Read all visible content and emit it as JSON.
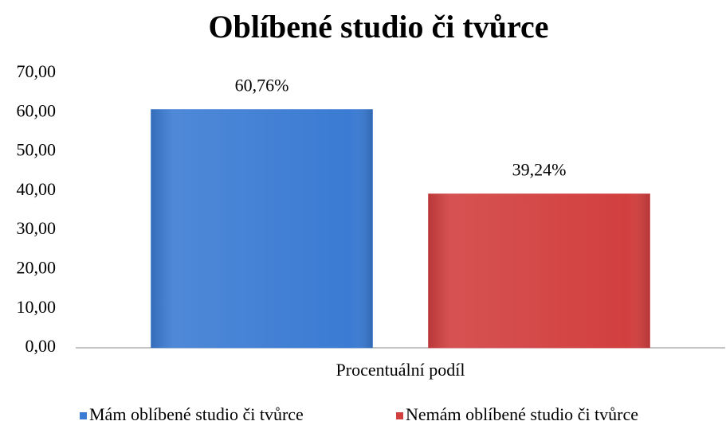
{
  "chart_data": {
    "type": "bar",
    "title": "Oblíbené studio či tvůrce",
    "categories": [
      "Procentuální podíl"
    ],
    "series": [
      {
        "name": "Mám oblíbené studio či tvůrce",
        "color": "#3b7bd3",
        "values": [
          60.76
        ],
        "value_labels": [
          "60,76%"
        ]
      },
      {
        "name": "Nemám oblíbené studio či tvůrce",
        "color": "#d23f3f",
        "values": [
          39.24
        ],
        "value_labels": [
          "39,24%"
        ]
      }
    ],
    "ylim": [
      0,
      70
    ],
    "yticks": [
      {
        "value": 0,
        "label": "0,00"
      },
      {
        "value": 10,
        "label": "10,00"
      },
      {
        "value": 20,
        "label": "20,00"
      },
      {
        "value": 30,
        "label": "30,00"
      },
      {
        "value": 40,
        "label": "40,00"
      },
      {
        "value": 50,
        "label": "50,00"
      },
      {
        "value": 60,
        "label": "60,00"
      },
      {
        "value": 70,
        "label": "70,00"
      }
    ],
    "grid": false,
    "legend": "bottom"
  }
}
